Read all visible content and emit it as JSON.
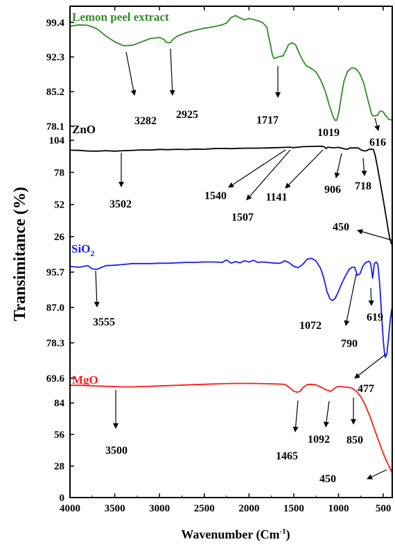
{
  "chart_data": {
    "type": "line",
    "title": "",
    "xlabel": "Wavenumber (Cm-1)",
    "xlabel_main": "Wavenumber (Cm",
    "xlabel_sup": "-1",
    "xlabel_end": ")",
    "ylabel": "Transimitance (%)",
    "xlim": [
      4000,
      400
    ],
    "x_ticks": [
      "4000",
      "3500",
      "3000",
      "2500",
      "2000",
      "1500",
      "1000",
      "500"
    ],
    "grid": false,
    "legend": "none",
    "series": [
      {
        "name": "Lemon peel extract",
        "color": "#2e8b22",
        "y_ticks": [
          "99.4",
          "92.3",
          "85.2",
          "78.1"
        ],
        "y_tick_values": [
          99.4,
          92.3,
          85.2,
          78.1
        ],
        "ylim": [
          76.5,
          102.0
        ],
        "points": [
          [
            4000,
            98.6
          ],
          [
            3900,
            98.9
          ],
          [
            3800,
            98.8
          ],
          [
            3700,
            98.1
          ],
          [
            3600,
            96.6
          ],
          [
            3500,
            95.4
          ],
          [
            3400,
            94.6
          ],
          [
            3300,
            94.7
          ],
          [
            3200,
            95.4
          ],
          [
            3100,
            96.1
          ],
          [
            3000,
            96.3
          ],
          [
            2950,
            95.9
          ],
          [
            2925,
            95.3
          ],
          [
            2880,
            95.2
          ],
          [
            2850,
            95.9
          ],
          [
            2800,
            96.6
          ],
          [
            2700,
            97.3
          ],
          [
            2600,
            97.8
          ],
          [
            2500,
            98.2
          ],
          [
            2400,
            98.5
          ],
          [
            2300,
            98.9
          ],
          [
            2250,
            99.3
          ],
          [
            2200,
            100.4
          ],
          [
            2150,
            100.8
          ],
          [
            2100,
            100.3
          ],
          [
            2050,
            99.9
          ],
          [
            2000,
            100.2
          ],
          [
            1950,
            100.0
          ],
          [
            1900,
            99.7
          ],
          [
            1850,
            99.4
          ],
          [
            1800,
            98.4
          ],
          [
            1780,
            96.3
          ],
          [
            1760,
            94.8
          ],
          [
            1740,
            92.8
          ],
          [
            1720,
            92.0
          ],
          [
            1700,
            92.1
          ],
          [
            1660,
            92.4
          ],
          [
            1620,
            92.5
          ],
          [
            1590,
            93.6
          ],
          [
            1560,
            94.8
          ],
          [
            1520,
            95.2
          ],
          [
            1480,
            94.8
          ],
          [
            1440,
            93.1
          ],
          [
            1400,
            91.6
          ],
          [
            1360,
            90.5
          ],
          [
            1300,
            89.9
          ],
          [
            1250,
            89.2
          ],
          [
            1200,
            87.6
          ],
          [
            1150,
            85.4
          ],
          [
            1100,
            82.2
          ],
          [
            1060,
            80.0
          ],
          [
            1040,
            79.3
          ],
          [
            1019,
            79.3
          ],
          [
            1000,
            80.6
          ],
          [
            970,
            84.1
          ],
          [
            940,
            87.3
          ],
          [
            900,
            89.3
          ],
          [
            850,
            90.1
          ],
          [
            800,
            89.8
          ],
          [
            760,
            88.8
          ],
          [
            720,
            87.0
          ],
          [
            680,
            84.1
          ],
          [
            650,
            82.0
          ],
          [
            630,
            80.5
          ],
          [
            616,
            80.2
          ],
          [
            590,
            80.2
          ],
          [
            560,
            80.4
          ],
          [
            540,
            81.1
          ],
          [
            520,
            81.2
          ],
          [
            500,
            81.0
          ],
          [
            480,
            80.4
          ],
          [
            460,
            80.0
          ],
          [
            440,
            79.5
          ],
          [
            420,
            79.4
          ],
          [
            400,
            79.4
          ]
        ],
        "annotations": [
          "3282",
          "2925",
          "1717",
          "1019",
          "616"
        ]
      },
      {
        "name": "ZnO",
        "color": "#000000",
        "y_ticks": [
          "104",
          "78",
          "52",
          "26"
        ],
        "y_tick_values": [
          104,
          78,
          52,
          26
        ],
        "ylim": [
          17.0,
          108.0
        ],
        "points": [
          [
            4000,
            96.0
          ],
          [
            3900,
            95.8
          ],
          [
            3800,
            95.3
          ],
          [
            3700,
            95.2
          ],
          [
            3600,
            95.6
          ],
          [
            3502,
            95.2
          ],
          [
            3400,
            95.6
          ],
          [
            3300,
            95.8
          ],
          [
            3200,
            96.2
          ],
          [
            3100,
            96.1
          ],
          [
            3000,
            96.6
          ],
          [
            2900,
            96.4
          ],
          [
            2800,
            96.7
          ],
          [
            2700,
            96.5
          ],
          [
            2600,
            96.9
          ],
          [
            2500,
            96.7
          ],
          [
            2400,
            97.2
          ],
          [
            2300,
            97.4
          ],
          [
            2200,
            97.2
          ],
          [
            2100,
            97.5
          ],
          [
            2000,
            97.6
          ],
          [
            1900,
            97.6
          ],
          [
            1800,
            97.8
          ],
          [
            1700,
            98.0
          ],
          [
            1600,
            98.2
          ],
          [
            1540,
            98.4
          ],
          [
            1507,
            98.0
          ],
          [
            1400,
            98.8
          ],
          [
            1300,
            99.0
          ],
          [
            1200,
            99.2
          ],
          [
            1160,
            98.8
          ],
          [
            1141,
            97.2
          ],
          [
            1120,
            98.4
          ],
          [
            1060,
            97.9
          ],
          [
            1000,
            98.2
          ],
          [
            950,
            97.3
          ],
          [
            906,
            96.6
          ],
          [
            870,
            97.8
          ],
          [
            820,
            97.8
          ],
          [
            780,
            97.8
          ],
          [
            750,
            96.2
          ],
          [
            718,
            95.5
          ],
          [
            690,
            95.4
          ],
          [
            660,
            96.6
          ],
          [
            630,
            96.9
          ],
          [
            610,
            96.5
          ],
          [
            590,
            91.6
          ],
          [
            560,
            80.4
          ],
          [
            530,
            68.1
          ],
          [
            500,
            55.8
          ],
          [
            480,
            47.0
          ],
          [
            460,
            38.2
          ],
          [
            440,
            29.4
          ],
          [
            425,
            23.8
          ],
          [
            410,
            20.2
          ],
          [
            400,
            20.2
          ]
        ],
        "annotations": [
          "3502",
          "1540",
          "1507",
          "1141",
          "906",
          "718",
          "450"
        ]
      },
      {
        "name": "SiO",
        "name_sub": "2",
        "color": "#1a1aff",
        "y_ticks": [
          "95.7",
          "87.0",
          "78.3",
          "69.6"
        ],
        "y_tick_values": [
          95.7,
          87.0,
          78.3,
          69.6
        ],
        "ylim": [
          69.6,
          101.7
        ],
        "points": [
          [
            4000,
            97.1
          ],
          [
            3900,
            96.9
          ],
          [
            3800,
            97.3
          ],
          [
            3750,
            96.5
          ],
          [
            3700,
            96.4
          ],
          [
            3600,
            97.3
          ],
          [
            3500,
            97.4
          ],
          [
            3400,
            97.6
          ],
          [
            3300,
            97.8
          ],
          [
            3200,
            97.8
          ],
          [
            3100,
            97.8
          ],
          [
            3000,
            97.9
          ],
          [
            2900,
            97.9
          ],
          [
            2800,
            98.0
          ],
          [
            2700,
            98.1
          ],
          [
            2600,
            98.1
          ],
          [
            2500,
            98.2
          ],
          [
            2400,
            98.2
          ],
          [
            2300,
            98.1
          ],
          [
            2250,
            98.7
          ],
          [
            2200,
            97.9
          ],
          [
            2150,
            98.3
          ],
          [
            2100,
            98.0
          ],
          [
            2050,
            98.5
          ],
          [
            2000,
            98.2
          ],
          [
            1950,
            98.6
          ],
          [
            1900,
            98.1
          ],
          [
            1850,
            98.2
          ],
          [
            1800,
            98.1
          ],
          [
            1700,
            97.9
          ],
          [
            1650,
            97.9
          ],
          [
            1600,
            98.5
          ],
          [
            1550,
            98.0
          ],
          [
            1500,
            97.1
          ],
          [
            1450,
            96.8
          ],
          [
            1400,
            97.6
          ],
          [
            1350,
            98.9
          ],
          [
            1300,
            99.1
          ],
          [
            1250,
            98.4
          ],
          [
            1200,
            96.6
          ],
          [
            1160,
            93.9
          ],
          [
            1130,
            91.0
          ],
          [
            1100,
            89.3
          ],
          [
            1072,
            88.7
          ],
          [
            1040,
            89.1
          ],
          [
            1000,
            91.0
          ],
          [
            960,
            93.1
          ],
          [
            920,
            94.9
          ],
          [
            880,
            96.4
          ],
          [
            850,
            96.9
          ],
          [
            820,
            96.9
          ],
          [
            790,
            94.9
          ],
          [
            760,
            95.3
          ],
          [
            730,
            97.1
          ],
          [
            700,
            98.0
          ],
          [
            660,
            98.4
          ],
          [
            640,
            97.8
          ],
          [
            619,
            94.2
          ],
          [
            600,
            97.8
          ],
          [
            580,
            98.2
          ],
          [
            560,
            97.6
          ],
          [
            540,
            92.8
          ],
          [
            520,
            85.6
          ],
          [
            500,
            78.8
          ],
          [
            485,
            75.5
          ],
          [
            477,
            74.7
          ],
          [
            460,
            75.5
          ],
          [
            440,
            79.7
          ],
          [
            420,
            84.3
          ],
          [
            405,
            86.6
          ],
          [
            400,
            87.0
          ]
        ],
        "annotations": [
          "3555",
          "1072",
          "619",
          "790",
          "477"
        ]
      },
      {
        "name": "MgO",
        "color": "#ff1a1a",
        "y_ticks": [
          "84",
          "56",
          "28",
          "0"
        ],
        "y_tick_values": [
          84,
          56,
          28,
          0
        ],
        "ylim": [
          0,
          106.0
        ],
        "points": [
          [
            4000,
            99.7
          ],
          [
            3900,
            99.7
          ],
          [
            3800,
            99.4
          ],
          [
            3700,
            99.1
          ],
          [
            3600,
            98.8
          ],
          [
            3500,
            98.5
          ],
          [
            3400,
            98.3
          ],
          [
            3300,
            98.3
          ],
          [
            3200,
            98.6
          ],
          [
            3100,
            98.8
          ],
          [
            3000,
            99.1
          ],
          [
            2900,
            99.4
          ],
          [
            2800,
            99.7
          ],
          [
            2700,
            100.0
          ],
          [
            2600,
            100.3
          ],
          [
            2500,
            100.6
          ],
          [
            2400,
            100.9
          ],
          [
            2300,
            101.1
          ],
          [
            2200,
            101.3
          ],
          [
            2100,
            101.4
          ],
          [
            2000,
            101.4
          ],
          [
            1900,
            101.3
          ],
          [
            1800,
            101.1
          ],
          [
            1700,
            100.9
          ],
          [
            1600,
            100.6
          ],
          [
            1550,
            97.8
          ],
          [
            1500,
            94.5
          ],
          [
            1465,
            93.6
          ],
          [
            1430,
            94.2
          ],
          [
            1400,
            97.5
          ],
          [
            1350,
            100.3
          ],
          [
            1300,
            100.6
          ],
          [
            1250,
            100.0
          ],
          [
            1200,
            98.3
          ],
          [
            1150,
            96.1
          ],
          [
            1100,
            94.7
          ],
          [
            1092,
            94.2
          ],
          [
            1060,
            96.1
          ],
          [
            1020,
            98.3
          ],
          [
            980,
            98.6
          ],
          [
            940,
            98.3
          ],
          [
            900,
            98.0
          ],
          [
            850,
            97.2
          ],
          [
            800,
            94.5
          ],
          [
            750,
            89.4
          ],
          [
            700,
            81.9
          ],
          [
            650,
            72.2
          ],
          [
            600,
            61.1
          ],
          [
            550,
            50.0
          ],
          [
            500,
            39.2
          ],
          [
            470,
            33.3
          ],
          [
            450,
            30.3
          ],
          [
            430,
            26.9
          ],
          [
            410,
            23.6
          ],
          [
            400,
            22.2
          ]
        ],
        "annotations": [
          "3500",
          "1465",
          "1092",
          "850",
          "450"
        ]
      }
    ]
  }
}
